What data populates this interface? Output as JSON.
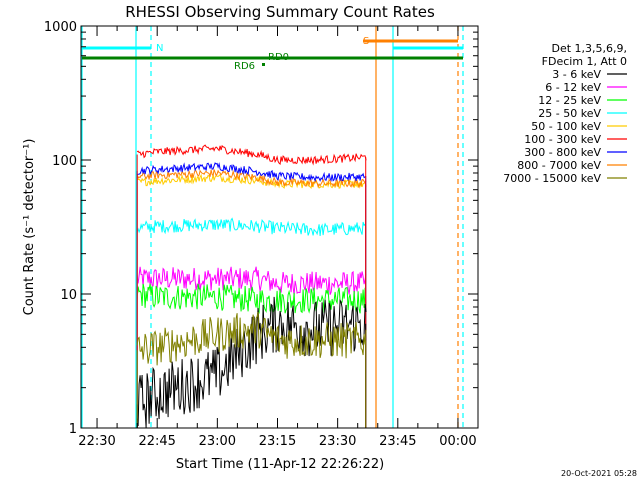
{
  "chart_data": {
    "type": "line",
    "title": "RHESSI Observing Summary Count Rates",
    "xlabel": "Start Time (11-Apr-12 22:26:22)",
    "ylabel": "Count Rate (s⁻¹ detector⁻¹)",
    "y_scale": "log",
    "ylim": [
      1,
      1000
    ],
    "xlim": [
      "22:26",
      "00:05"
    ],
    "x_ticks": [
      "22:30",
      "22:45",
      "23:00",
      "23:15",
      "23:30",
      "23:45",
      "00:00"
    ],
    "y_ticks": [
      "1",
      "10",
      "100",
      "1000"
    ],
    "legend_title": [
      "Det 1,3,5,6,9,",
      "FDecim 1, Att 0"
    ],
    "legend_position": "right",
    "timestamp": "20-Oct-2021 05:28",
    "markers": {
      "N": "N",
      "S": "S",
      "RD0": "RD0",
      "RD6": "RD6"
    },
    "series": [
      {
        "name": "3 - 6 keV",
        "color": "#000000",
        "x": [
          "22:40",
          "22:45",
          "23:00",
          "23:10",
          "23:15",
          "23:25",
          "23:37"
        ],
        "values": [
          1.5,
          1.8,
          2.5,
          5,
          6,
          5.5,
          6
        ]
      },
      {
        "name": "6 - 12 keV",
        "color": "#ff00ff",
        "x": [
          "22:40",
          "22:45",
          "23:00",
          "23:10",
          "23:15",
          "23:25",
          "23:37"
        ],
        "values": [
          13,
          13,
          13,
          13,
          12,
          12,
          12
        ]
      },
      {
        "name": "12 - 25 keV",
        "color": "#00ff00",
        "x": [
          "22:40",
          "22:45",
          "23:00",
          "23:10",
          "23:15",
          "23:25",
          "23:37"
        ],
        "values": [
          10,
          9.5,
          9.5,
          9,
          9,
          9,
          9
        ]
      },
      {
        "name": "25 - 50 keV",
        "color": "#00ffff",
        "x": [
          "22:40",
          "22:45",
          "23:00",
          "23:10",
          "23:15",
          "23:25",
          "23:37"
        ],
        "values": [
          31,
          32,
          33,
          32,
          31,
          30,
          31
        ]
      },
      {
        "name": "50 - 100 keV",
        "color": "#ffcc00",
        "x": [
          "22:40",
          "22:45",
          "23:00",
          "23:10",
          "23:15",
          "23:25",
          "23:37"
        ],
        "values": [
          68,
          70,
          74,
          70,
          66,
          66,
          66
        ]
      },
      {
        "name": "100 - 300 keV",
        "color": "#ff0000",
        "x": [
          "22:40",
          "22:45",
          "23:00",
          "23:10",
          "23:15",
          "23:25",
          "23:37"
        ],
        "values": [
          110,
          115,
          122,
          110,
          100,
          100,
          105
        ]
      },
      {
        "name": "300 - 800 keV",
        "color": "#0000ff",
        "x": [
          "22:40",
          "22:45",
          "23:00",
          "23:10",
          "23:15",
          "23:25",
          "23:37"
        ],
        "values": [
          83,
          85,
          90,
          82,
          76,
          74,
          75
        ]
      },
      {
        "name": "800 - 7000 keV",
        "color": "#ff8000",
        "x": [
          "22:40",
          "22:45",
          "23:00",
          "23:10",
          "23:15",
          "23:25",
          "23:37"
        ],
        "values": [
          75,
          77,
          80,
          74,
          68,
          67,
          67
        ]
      },
      {
        "name": "7000 - 15000 keV",
        "color": "#808000",
        "x": [
          "22:40",
          "22:45",
          "23:00",
          "23:10",
          "23:15",
          "23:25",
          "23:37"
        ],
        "values": [
          3.8,
          4,
          5,
          5.5,
          4.5,
          4.5,
          4.5
        ]
      }
    ]
  }
}
